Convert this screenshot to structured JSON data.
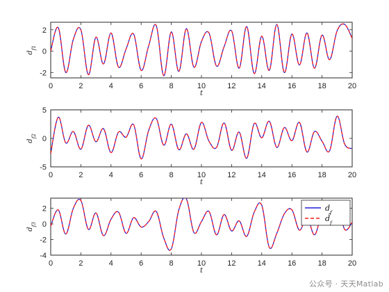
{
  "figure": {
    "background": "#ffffff"
  },
  "colors": {
    "true_signal": "#1f1fd8",
    "estimate": "#ff1a1a",
    "axis": "#262626"
  },
  "chart_data": [
    {
      "type": "line",
      "title": "",
      "xlabel": "t",
      "ylabel": "d_{f1}",
      "xlim": [
        0,
        20
      ],
      "ylim": [
        -2.5,
        2.7
      ],
      "xticks": [
        "0",
        "2",
        "4",
        "6",
        "8",
        "10",
        "12",
        "14",
        "16",
        "18",
        "20"
      ],
      "yticks": [
        "-2",
        "0",
        "2"
      ],
      "series": [
        {
          "x": [
            0,
            0.5,
            1,
            1.5,
            2,
            2.5,
            3,
            3.5,
            4,
            4.5,
            5,
            5.5,
            6,
            6.5,
            7,
            7.5,
            8,
            8.5,
            9,
            9.5,
            10,
            10.5,
            11,
            11.5,
            12,
            12.5,
            13,
            13.5,
            14,
            14.5,
            15,
            15.5,
            16,
            16.5,
            17,
            17.5,
            18,
            18.5,
            19,
            19.5,
            20
          ],
          "y": [
            0,
            2.2,
            -2.0,
            1.1,
            2.0,
            -2.2,
            1.3,
            -1.2,
            1.7,
            -1.5,
            0.2,
            1.6,
            -1.8,
            0.5,
            2.4,
            -2.3,
            1.8,
            -1.9,
            2.1,
            -1.5,
            0.9,
            1.7,
            -1.4,
            0.4,
            1.9,
            -1.6,
            2.3,
            -2.1,
            1.4,
            -1.8,
            2.5,
            -2.0,
            1.6,
            -1.3,
            1.7,
            -1.6,
            1.5,
            -0.8,
            1.9,
            2.5,
            1.2
          ]
        },
        {
          "x": [
            0,
            0.5,
            1,
            1.5,
            2,
            2.5,
            3,
            3.5,
            4,
            4.5,
            5,
            5.5,
            6,
            6.5,
            7,
            7.5,
            8,
            8.5,
            9,
            9.5,
            10,
            10.5,
            11,
            11.5,
            12,
            12.5,
            13,
            13.5,
            14,
            14.5,
            15,
            15.5,
            16,
            16.5,
            17,
            17.5,
            18,
            18.5,
            19,
            19.5,
            20
          ],
          "y": [
            0,
            2.2,
            -2.0,
            1.1,
            2.0,
            -2.2,
            1.3,
            -1.2,
            1.7,
            -1.5,
            0.2,
            1.6,
            -1.8,
            0.5,
            2.4,
            -2.3,
            1.8,
            -1.9,
            2.1,
            -1.5,
            0.9,
            1.7,
            -1.4,
            0.4,
            1.9,
            -1.6,
            2.3,
            -2.1,
            1.4,
            -1.8,
            2.5,
            -2.0,
            1.6,
            -1.3,
            1.7,
            -1.6,
            1.5,
            -0.8,
            1.9,
            2.5,
            1.2
          ]
        }
      ]
    },
    {
      "type": "line",
      "title": "",
      "xlabel": "t",
      "ylabel": "d_{f2}",
      "xlim": [
        0,
        20
      ],
      "ylim": [
        -5,
        5
      ],
      "xticks": [
        "0",
        "2",
        "4",
        "6",
        "8",
        "10",
        "12",
        "14",
        "16",
        "18",
        "20"
      ],
      "yticks": [
        "-5",
        "0",
        "5"
      ],
      "series": [
        {
          "x": [
            0,
            0.5,
            1,
            1.5,
            2,
            2.5,
            3,
            3.5,
            4,
            4.5,
            5,
            5.5,
            6,
            6.5,
            7,
            7.5,
            8,
            8.5,
            9,
            9.5,
            10,
            10.5,
            11,
            11.5,
            12,
            12.5,
            13,
            13.5,
            14,
            14.5,
            15,
            15.5,
            16,
            16.5,
            17,
            17.5,
            18,
            18.5,
            19,
            19.5,
            20
          ],
          "y": [
            -2.7,
            3.7,
            -0.8,
            1.2,
            -1.9,
            2.3,
            -0.6,
            1.7,
            -2.5,
            1.1,
            0.2,
            2.4,
            -3.6,
            1.4,
            3.5,
            -1.2,
            2.5,
            -2.0,
            0.8,
            -1.9,
            2.8,
            -0.5,
            -1.6,
            2.7,
            -2.1,
            1.1,
            -3.5,
            2.6,
            0.1,
            3.0,
            -1.6,
            1.9,
            -0.4,
            2.8,
            -2.4,
            1.2,
            -0.5,
            -2.2,
            3.9,
            -1.0,
            -1.8
          ]
        },
        {
          "x": [
            0,
            0.5,
            1,
            1.5,
            2,
            2.5,
            3,
            3.5,
            4,
            4.5,
            5,
            5.5,
            6,
            6.5,
            7,
            7.5,
            8,
            8.5,
            9,
            9.5,
            10,
            10.5,
            11,
            11.5,
            12,
            12.5,
            13,
            13.5,
            14,
            14.5,
            15,
            15.5,
            16,
            16.5,
            17,
            17.5,
            18,
            18.5,
            19,
            19.5,
            20
          ],
          "y": [
            -2.7,
            3.7,
            -0.8,
            1.2,
            -1.9,
            2.3,
            -0.6,
            1.7,
            -2.5,
            1.1,
            0.2,
            2.4,
            -3.6,
            1.4,
            3.5,
            -1.2,
            2.5,
            -2.0,
            0.8,
            -1.9,
            2.8,
            -0.5,
            -1.6,
            2.7,
            -2.1,
            1.1,
            -3.5,
            2.6,
            0.1,
            3.0,
            -1.6,
            1.9,
            -0.4,
            2.8,
            -2.4,
            1.2,
            -0.5,
            -2.2,
            3.9,
            -1.0,
            -1.8
          ]
        }
      ]
    },
    {
      "type": "line",
      "title": "",
      "xlabel": "t",
      "ylabel": "d_{f3}",
      "xlim": [
        0,
        20
      ],
      "ylim": [
        -4,
        3.3
      ],
      "xticks": [
        "0",
        "2",
        "4",
        "6",
        "8",
        "10",
        "12",
        "14",
        "16",
        "18",
        "20"
      ],
      "yticks": [
        "-4",
        "-2",
        "0",
        "2"
      ],
      "legend": {
        "position": "top-right",
        "entries": [
          "d_f",
          "\\hat{d}_f"
        ]
      },
      "series": [
        {
          "name": "d_f",
          "x": [
            0,
            0.5,
            1,
            1.5,
            2,
            2.5,
            3,
            3.5,
            4,
            4.5,
            5,
            5.5,
            6,
            6.5,
            7,
            7.5,
            8,
            8.5,
            9,
            9.5,
            10,
            10.5,
            11,
            11.5,
            12,
            12.5,
            13,
            13.5,
            14,
            14.5,
            15,
            15.5,
            16,
            16.5,
            17,
            17.5,
            18,
            18.5,
            19,
            19.5,
            20
          ],
          "y": [
            -0.3,
            1.8,
            -1.3,
            2.0,
            3.0,
            -0.7,
            1.4,
            -1.5,
            0.6,
            1.5,
            -1.2,
            0.8,
            -0.4,
            0.3,
            1.6,
            -1.8,
            -3.2,
            1.8,
            3.2,
            -1.1,
            0.3,
            1.6,
            -1.4,
            1.2,
            -0.9,
            0.4,
            -1.6,
            1.5,
            2.4,
            -3.0,
            -1.2,
            1.3,
            1.8,
            -0.8,
            0.9,
            -1.4,
            1.2,
            0.4,
            2.7,
            -0.7,
            0.2
          ]
        },
        {
          "name": "\\hat{d}_f",
          "x": [
            0,
            0.5,
            1,
            1.5,
            2,
            2.5,
            3,
            3.5,
            4,
            4.5,
            5,
            5.5,
            6,
            6.5,
            7,
            7.5,
            8,
            8.5,
            9,
            9.5,
            10,
            10.5,
            11,
            11.5,
            12,
            12.5,
            13,
            13.5,
            14,
            14.5,
            15,
            15.5,
            16,
            16.5,
            17,
            17.5,
            18,
            18.5,
            19,
            19.5,
            20
          ],
          "y": [
            -0.3,
            1.8,
            -1.3,
            2.0,
            3.0,
            -0.7,
            1.4,
            -1.5,
            0.6,
            1.5,
            -1.2,
            0.8,
            -0.4,
            0.3,
            1.6,
            -1.8,
            -3.2,
            1.8,
            3.2,
            -1.1,
            0.3,
            1.6,
            -1.4,
            1.2,
            -0.9,
            0.4,
            -1.6,
            1.5,
            2.4,
            -3.0,
            -1.2,
            1.3,
            1.8,
            -0.8,
            0.9,
            -1.4,
            1.2,
            0.4,
            2.7,
            -0.7,
            0.2
          ]
        }
      ]
    }
  ],
  "watermark": {
    "text": "公众号 · 天天Matlab"
  }
}
